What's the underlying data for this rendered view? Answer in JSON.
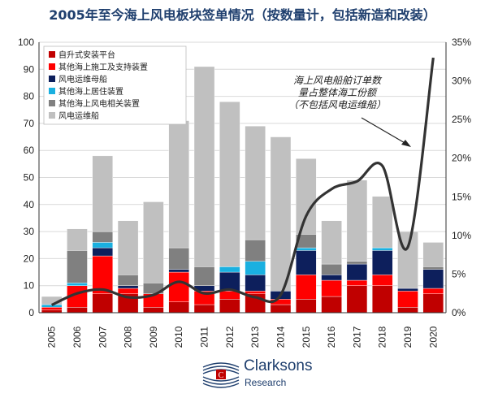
{
  "chart_data": {
    "type": "bar",
    "title": "2005年至今海上风电板块签单情况（按数量计，包括新造和改装）",
    "categories": [
      "2005",
      "2006",
      "2007",
      "2008",
      "2009",
      "2010",
      "2011",
      "2012",
      "2013",
      "2014",
      "2015",
      "2016",
      "2017",
      "2018",
      "2019",
      "2020"
    ],
    "stacked": true,
    "y_left_ticks": [
      "0",
      "10",
      "20",
      "30",
      "40",
      "50",
      "60",
      "70",
      "80",
      "90",
      "100"
    ],
    "y_right_ticks": [
      "0%",
      "5%",
      "10%",
      "15%",
      "20%",
      "25%",
      "30%",
      "35%"
    ],
    "ylim_left": [
      0,
      100
    ],
    "ylim_right": [
      0,
      0.35
    ],
    "legend_position": "top-left",
    "series": [
      {
        "name": "自升式安装平台",
        "color": "#c00000",
        "values": [
          1,
          2,
          7,
          7,
          2,
          4,
          3,
          5,
          7,
          3,
          5,
          6,
          10,
          10,
          2,
          7
        ]
      },
      {
        "name": "其他海上施工及支持装置",
        "color": "#ff0000",
        "values": [
          1,
          8,
          14,
          2,
          5,
          11,
          5,
          3,
          1,
          2,
          9,
          6,
          2,
          4,
          6,
          2
        ]
      },
      {
        "name": "风电运维母船",
        "color": "#0d1f5c",
        "values": [
          0,
          0,
          3,
          1,
          0,
          1,
          2,
          7,
          6,
          3,
          9,
          2,
          6,
          9,
          1,
          7
        ]
      },
      {
        "name": "其他海上居住装置",
        "color": "#1ab0e0",
        "values": [
          1,
          1,
          2,
          0,
          0,
          0,
          0,
          2,
          5,
          0,
          1,
          0,
          0,
          1,
          0,
          0
        ]
      },
      {
        "name": "其他海上风电相关装置",
        "color": "#808080",
        "values": [
          0,
          12,
          4,
          4,
          4,
          8,
          7,
          0,
          8,
          0,
          5,
          4,
          1,
          0,
          0,
          1
        ]
      },
      {
        "name": "风电运维船",
        "color": "#c0c0c0",
        "values": [
          3,
          8,
          28,
          20,
          30,
          47,
          74,
          61,
          42,
          57,
          28,
          16,
          30,
          19,
          21,
          9
        ]
      }
    ],
    "share_line": {
      "axis": "right",
      "color": "#333333",
      "values": [
        0.01,
        0.025,
        0.03,
        0.02,
        0.023,
        0.04,
        0.025,
        0.03,
        0.02,
        0.023,
        0.125,
        0.16,
        0.17,
        0.19,
        0.085,
        0.33
      ]
    },
    "annotation": {
      "lines": [
        "海上风电船舶订单数",
        "量占整体海工份额",
        "（不包括风电运维船）"
      ]
    }
  },
  "branding": {
    "name": "Clarksons",
    "sub": "Research",
    "colors": {
      "navy": "#1f3f6e",
      "red": "#c00000"
    }
  }
}
